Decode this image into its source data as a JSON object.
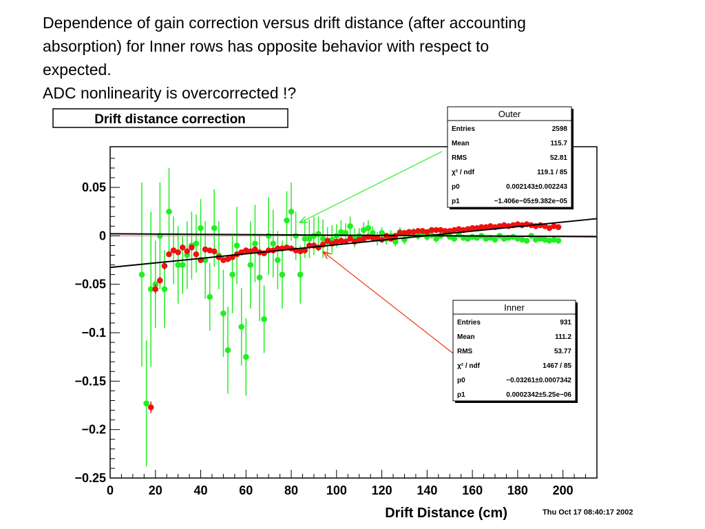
{
  "headline": {
    "line1": "Dependence of gain correction versus drift distance (after accounting",
    "line2": "absorption) for Inner rows has opposite behavior with respect to",
    "line3": "expected.",
    "line4": "ADC nonlinearity is overcorrected !?"
  },
  "timestamp": "Thu Oct 17 08:40:17 2002",
  "colors": {
    "outer": "#22ee22",
    "inner": "#ee1111",
    "outer_arrow": "#22ee22",
    "inner_arrow": "#ee3300",
    "fit_line": "#000000"
  },
  "chart_data": {
    "type": "scatter",
    "title": "Drift distance correction",
    "xlabel": "Drift Distance (cm)",
    "ylabel": "",
    "xlim": [
      0,
      215
    ],
    "ylim": [
      -0.25,
      0.092
    ],
    "xticks": [
      "0",
      "20",
      "40",
      "60",
      "80",
      "100",
      "120",
      "140",
      "160",
      "180",
      "200"
    ],
    "yticks": [
      "0.05",
      "0",
      "−0.05",
      "−0.1",
      "−0.15",
      "−0.2",
      "−0.25"
    ],
    "ytick_values": [
      0.05,
      0,
      -0.05,
      -0.1,
      -0.15,
      -0.2,
      -0.25
    ],
    "xtick_values": [
      0,
      20,
      40,
      60,
      80,
      100,
      120,
      140,
      160,
      180,
      200
    ],
    "series": [
      {
        "name": "Outer",
        "key": "outer",
        "fit": {
          "p0": 0.00214,
          "p1": -1.406e-05
        },
        "x": [
          14,
          16,
          18,
          20,
          22,
          24,
          26,
          28,
          30,
          32,
          34,
          36,
          38,
          40,
          42,
          44,
          46,
          48,
          50,
          52,
          54,
          56,
          58,
          60,
          62,
          64,
          66,
          68,
          70,
          72,
          74,
          76,
          78,
          80,
          82,
          84,
          86,
          88,
          90,
          92,
          94,
          96,
          98,
          100,
          102,
          104,
          106,
          108,
          110,
          112,
          114,
          116,
          118,
          120,
          122,
          124,
          126,
          128,
          130,
          132,
          134,
          136,
          138,
          140,
          142,
          144,
          146,
          148,
          150,
          152,
          154,
          156,
          158,
          160,
          162,
          164,
          166,
          168,
          170,
          172,
          174,
          176,
          178,
          180,
          182,
          184,
          186,
          188,
          190,
          192,
          194,
          196,
          198
        ],
        "y": [
          -0.04,
          -0.173,
          -0.055,
          -0.05,
          0.0,
          -0.055,
          0.025,
          -0.015,
          -0.03,
          -0.03,
          -0.02,
          -0.01,
          -0.008,
          0.008,
          -0.025,
          -0.063,
          0.008,
          -0.02,
          -0.08,
          -0.118,
          -0.04,
          -0.01,
          -0.094,
          -0.125,
          -0.03,
          -0.008,
          -0.043,
          -0.086,
          0.0,
          -0.008,
          -0.025,
          -0.04,
          0.016,
          0.025,
          0.0,
          -0.04,
          -0.003,
          -0.003,
          0.0,
          0.002,
          -0.003,
          -0.006,
          -0.004,
          0.0,
          0.004,
          0.003,
          0.01,
          -0.002,
          0.0,
          0.006,
          0.008,
          0.003,
          -0.003,
          0.003,
          -0.003,
          0.0,
          -0.006,
          0.004,
          -0.004,
          0.002,
          0.004,
          0.0,
          0.002,
          -0.001,
          0.001,
          -0.003,
          0.0,
          0.003,
          -0.001,
          -0.003,
          0.001,
          -0.002,
          -0.003,
          -0.001,
          -0.002,
          0.0,
          -0.003,
          -0.002,
          -0.004,
          0.0,
          -0.003,
          -0.002,
          -0.001,
          -0.003,
          -0.004,
          -0.005,
          0.0,
          -0.004,
          -0.003,
          -0.004,
          -0.005,
          -0.004,
          -0.005
        ],
        "err": [
          0.095,
          0.065,
          0.08,
          0.045,
          0.055,
          0.04,
          0.045,
          0.035,
          0.04,
          0.03,
          0.035,
          0.035,
          0.03,
          0.03,
          0.04,
          0.035,
          0.04,
          0.035,
          0.045,
          0.045,
          0.04,
          0.04,
          0.04,
          0.04,
          0.045,
          0.04,
          0.045,
          0.035,
          0.04,
          0.035,
          0.03,
          0.035,
          0.03,
          0.03,
          0.025,
          0.03,
          0.02,
          0.02,
          0.02,
          0.018,
          0.02,
          0.015,
          0.015,
          0.012,
          0.012,
          0.01,
          0.01,
          0.01,
          0.008,
          0.008,
          0.008,
          0.007,
          0.007,
          0.006,
          0.006,
          0.006,
          0.005,
          0.005,
          0.005,
          0.005,
          0.004,
          0.004,
          0.004,
          0.004,
          0.004,
          0.004,
          0.003,
          0.003,
          0.003,
          0.003,
          0.003,
          0.003,
          0.003,
          0.003,
          0.003,
          0.003,
          0.003,
          0.003,
          0.003,
          0.003,
          0.003,
          0.003,
          0.003,
          0.003,
          0.003,
          0.003,
          0.003,
          0.003,
          0.003,
          0.003,
          0.003,
          0.003,
          0.003
        ]
      },
      {
        "name": "Inner",
        "key": "inner",
        "fit": {
          "p0": -0.03261,
          "p1": 0.0002342
        },
        "x": [
          18,
          20,
          22,
          24,
          26,
          28,
          30,
          32,
          34,
          36,
          38,
          40,
          42,
          44,
          46,
          48,
          50,
          52,
          54,
          56,
          58,
          60,
          62,
          64,
          66,
          68,
          70,
          72,
          74,
          76,
          78,
          80,
          82,
          84,
          86,
          88,
          90,
          92,
          94,
          96,
          98,
          100,
          102,
          104,
          106,
          108,
          110,
          112,
          114,
          116,
          118,
          120,
          122,
          124,
          126,
          128,
          130,
          132,
          134,
          136,
          138,
          140,
          142,
          144,
          146,
          148,
          150,
          152,
          154,
          156,
          158,
          160,
          162,
          164,
          166,
          168,
          170,
          172,
          174,
          176,
          178,
          180,
          182,
          184,
          186,
          188,
          190,
          192,
          194,
          196,
          198
        ],
        "y": [
          -0.177,
          -0.055,
          -0.046,
          -0.031,
          -0.019,
          -0.015,
          -0.017,
          -0.012,
          -0.016,
          -0.012,
          -0.019,
          -0.025,
          -0.014,
          -0.015,
          -0.016,
          -0.022,
          -0.025,
          -0.024,
          -0.022,
          -0.019,
          -0.017,
          -0.015,
          -0.016,
          -0.014,
          -0.017,
          -0.018,
          -0.015,
          -0.015,
          -0.013,
          -0.013,
          -0.012,
          -0.013,
          -0.015,
          -0.016,
          -0.015,
          -0.01,
          -0.01,
          -0.012,
          -0.009,
          -0.005,
          -0.008,
          -0.006,
          -0.005,
          -0.006,
          -0.003,
          -0.006,
          -0.004,
          -0.003,
          -0.001,
          -0.002,
          -0.002,
          -0.004,
          0.0,
          -0.003,
          0.0,
          0.003,
          0.003,
          0.004,
          0.004,
          0.005,
          0.005,
          0.004,
          0.006,
          0.006,
          0.006,
          0.005,
          0.005,
          0.006,
          0.007,
          0.006,
          0.007,
          0.008,
          0.008,
          0.009,
          0.009,
          0.01,
          0.009,
          0.01,
          0.011,
          0.01,
          0.011,
          0.012,
          0.011,
          0.012,
          0.011,
          0.01,
          0.011,
          0.01,
          0.008,
          0.01,
          0.009
        ],
        "err": [
          0.006,
          0.005,
          0.004,
          0.004,
          0.003,
          0.003,
          0.003,
          0.003,
          0.003,
          0.003,
          0.003,
          0.003,
          0.003,
          0.003,
          0.003,
          0.003,
          0.003,
          0.003,
          0.003,
          0.003,
          0.003,
          0.003,
          0.003,
          0.003,
          0.003,
          0.003,
          0.003,
          0.003,
          0.003,
          0.003,
          0.003,
          0.003,
          0.003,
          0.003,
          0.003,
          0.003,
          0.003,
          0.003,
          0.003,
          0.003,
          0.003,
          0.003,
          0.003,
          0.003,
          0.003,
          0.003,
          0.003,
          0.003,
          0.003,
          0.003,
          0.003,
          0.003,
          0.003,
          0.003,
          0.003,
          0.003,
          0.003,
          0.003,
          0.003,
          0.003,
          0.003,
          0.003,
          0.003,
          0.003,
          0.003,
          0.003,
          0.003,
          0.003,
          0.003,
          0.003,
          0.003,
          0.003,
          0.003,
          0.003,
          0.003,
          0.003,
          0.003,
          0.003,
          0.003,
          0.003,
          0.003,
          0.003,
          0.003,
          0.003,
          0.003,
          0.003,
          0.003,
          0.003,
          0.003,
          0.003,
          0.003
        ]
      }
    ],
    "stat_boxes": {
      "outer": {
        "title": "Outer",
        "rows": [
          {
            "label": "Entries",
            "value": "2598"
          },
          {
            "label": "Mean",
            "value": "115.7"
          },
          {
            "label": "RMS",
            "value": "52.81"
          },
          {
            "label": "χ² / ndf",
            "value": "119.1 / 85"
          },
          {
            "label": "p0",
            "value": "0.002143±0.002243"
          },
          {
            "label": "p1",
            "value": "−1.406e−05±9.382e−05"
          }
        ]
      },
      "inner": {
        "title": "Inner",
        "rows": [
          {
            "label": "Entries",
            "value": "931"
          },
          {
            "label": "Mean",
            "value": "111.2"
          },
          {
            "label": "RMS",
            "value": "53.77"
          },
          {
            "label": "χ² / ndf",
            "value": "1467 / 85"
          },
          {
            "label": "p0",
            "value": "−0.03261±0.0007342"
          },
          {
            "label": "p1",
            "value": "0.0002342±5.25e−06"
          }
        ]
      }
    }
  }
}
